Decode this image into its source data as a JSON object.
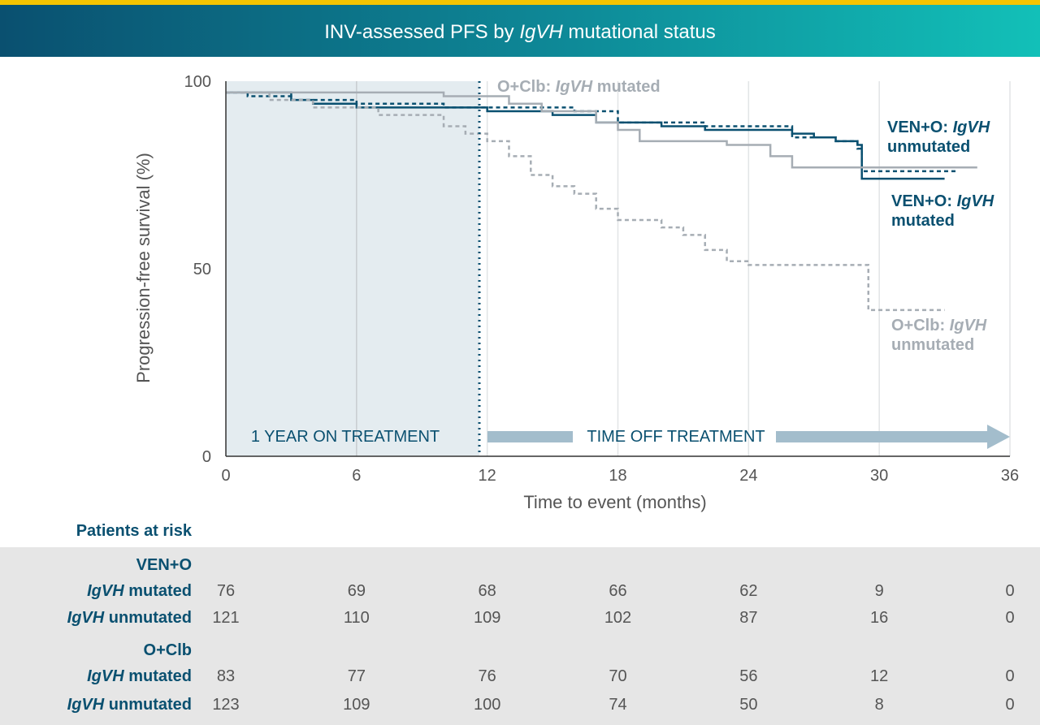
{
  "title": {
    "prefix": "INV-assessed PFS by ",
    "italic": "IgVH",
    "suffix": " mutational status"
  },
  "chart_data": {
    "type": "line",
    "xlabel": "Time to event (months)",
    "ylabel": "Progression-free survival (%)",
    "xlim": [
      0,
      36
    ],
    "ylim": [
      0,
      100
    ],
    "x_ticks": [
      0,
      6,
      12,
      18,
      24,
      30,
      36
    ],
    "x_tick_labels": [
      "0",
      "6",
      "12",
      "18",
      "24",
      "30",
      "36"
    ],
    "y_ticks": [
      0,
      50,
      100
    ],
    "y_tick_labels": [
      "0",
      "50",
      "100"
    ],
    "annotations": {
      "on_treatment": "1 YEAR ON TREATMENT",
      "off_treatment": "TIME OFF TREATMENT",
      "treatment_end_month": 12
    },
    "series": [
      {
        "name": "VEN+O: IgVH unmutated",
        "label_a": "VEN+O: ",
        "label_i": "IgVH",
        "label_b": "unmutated",
        "color": "#0a5070",
        "dash": "solid",
        "points": [
          [
            0,
            97
          ],
          [
            3,
            95
          ],
          [
            4,
            94
          ],
          [
            6,
            93
          ],
          [
            9,
            93
          ],
          [
            12,
            92
          ],
          [
            15,
            91
          ],
          [
            17,
            89
          ],
          [
            20,
            88
          ],
          [
            22,
            87
          ],
          [
            26,
            86
          ],
          [
            27,
            85
          ],
          [
            28,
            84
          ],
          [
            29,
            83
          ],
          [
            29.2,
            74
          ],
          [
            33,
            74
          ]
        ]
      },
      {
        "name": "VEN+O: IgVH mutated",
        "label_a": "VEN+O: ",
        "label_i": "IgVH",
        "label_b": "mutated",
        "color": "#0a5070",
        "dash": "dashed",
        "points": [
          [
            0,
            97
          ],
          [
            1,
            96
          ],
          [
            3,
            95
          ],
          [
            6,
            94
          ],
          [
            10,
            93
          ],
          [
            12,
            93
          ],
          [
            16,
            92
          ],
          [
            18,
            89
          ],
          [
            22,
            88
          ],
          [
            26,
            85
          ],
          [
            28,
            84
          ],
          [
            29,
            82
          ],
          [
            29.2,
            76
          ],
          [
            33.5,
            76
          ]
        ]
      },
      {
        "name": "O+Clb: IgVH mutated",
        "label_a": "O+Clb: ",
        "label_i": "IgVH",
        "label_b": "mutated",
        "color": "#a6adb4",
        "dash": "solid",
        "points": [
          [
            0,
            97
          ],
          [
            5,
            97
          ],
          [
            10,
            96
          ],
          [
            13,
            94
          ],
          [
            14.5,
            92
          ],
          [
            17,
            89
          ],
          [
            18,
            87
          ],
          [
            19,
            84
          ],
          [
            23,
            83
          ],
          [
            25,
            80
          ],
          [
            26,
            77
          ],
          [
            34.5,
            77
          ]
        ]
      },
      {
        "name": "O+Clb: IgVH unmutated",
        "label_a": "O+Clb: ",
        "label_i": "IgVH",
        "label_b": "unmutated",
        "color": "#a6adb4",
        "dash": "dashed",
        "points": [
          [
            0,
            97
          ],
          [
            2,
            95
          ],
          [
            4,
            93
          ],
          [
            7,
            91
          ],
          [
            10,
            88
          ],
          [
            11,
            86
          ],
          [
            12,
            84
          ],
          [
            13,
            80
          ],
          [
            14,
            75
          ],
          [
            15,
            72
          ],
          [
            16,
            70
          ],
          [
            17,
            66
          ],
          [
            18,
            63
          ],
          [
            20,
            61
          ],
          [
            21,
            59
          ],
          [
            22,
            55
          ],
          [
            23,
            52
          ],
          [
            24,
            51
          ],
          [
            29,
            51
          ],
          [
            29.5,
            39
          ],
          [
            33,
            39
          ]
        ]
      }
    ]
  },
  "risk_table": {
    "title": "Patients at risk",
    "groups": [
      {
        "name": "VEN+O",
        "rows": [
          {
            "italic": "IgVH",
            "rest": " mutated",
            "values": [
              "76",
              "69",
              "68",
              "66",
              "62",
              "9",
              "0"
            ]
          },
          {
            "italic": "IgVH",
            "rest": " unmutated",
            "values": [
              "121",
              "110",
              "109",
              "102",
              "87",
              "16",
              "0"
            ]
          }
        ]
      },
      {
        "name": "O+Clb",
        "rows": [
          {
            "italic": "IgVH",
            "rest": " mutated",
            "values": [
              "83",
              "77",
              "76",
              "70",
              "56",
              "12",
              "0"
            ]
          },
          {
            "italic": "IgVH",
            "rest": " unmutated",
            "values": [
              "123",
              "109",
              "100",
              "74",
              "50",
              "8",
              "0"
            ]
          }
        ]
      }
    ]
  }
}
